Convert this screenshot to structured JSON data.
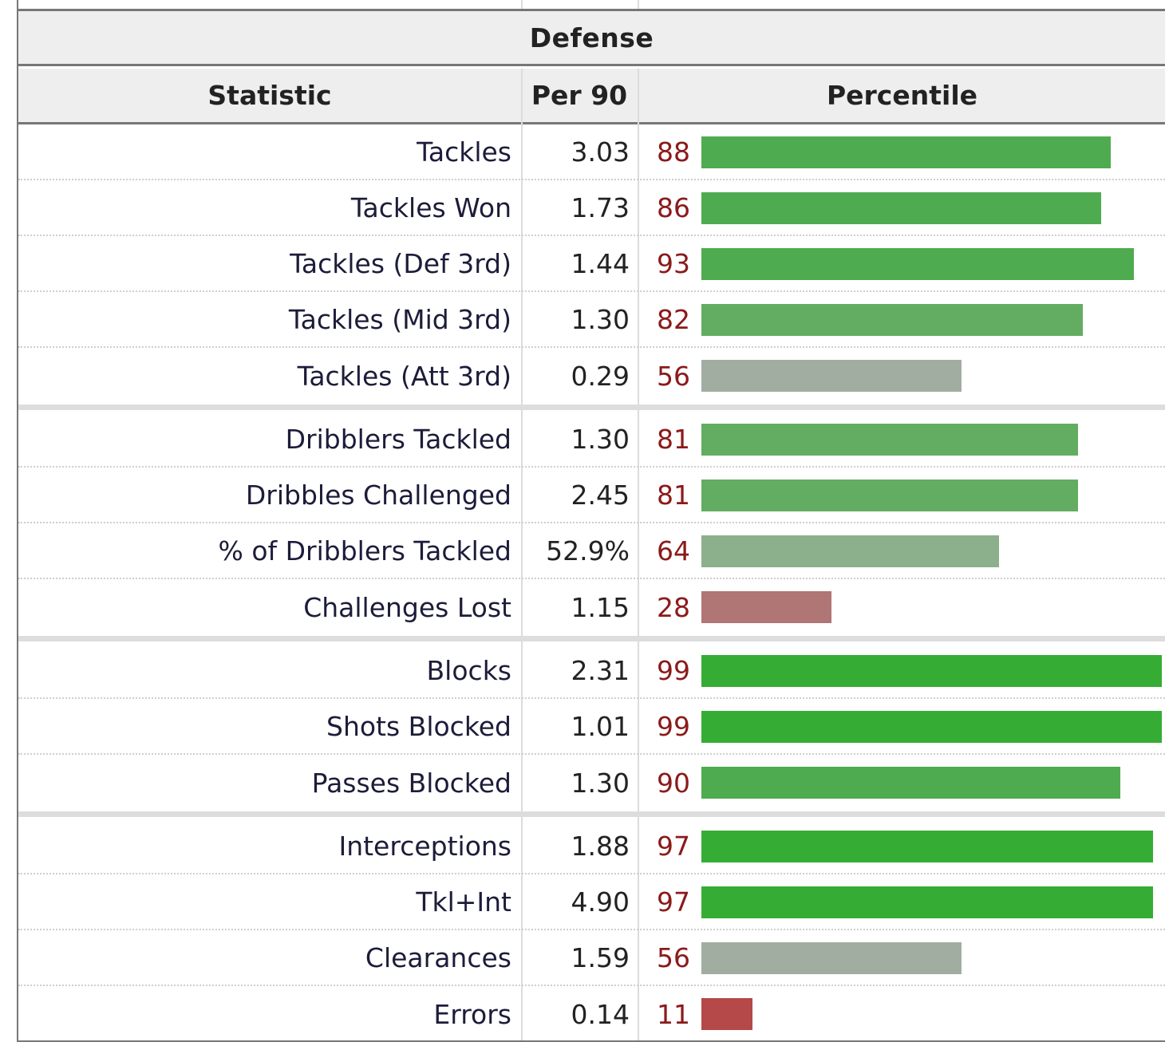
{
  "table": {
    "title": "Defense",
    "columns": [
      "Statistic",
      "Per 90",
      "Percentile"
    ],
    "groups": [
      [
        {
          "stat": "Tackles",
          "per90": "3.03",
          "percentile": 88
        },
        {
          "stat": "Tackles Won",
          "per90": "1.73",
          "percentile": 86
        },
        {
          "stat": "Tackles (Def 3rd)",
          "per90": "1.44",
          "percentile": 93
        },
        {
          "stat": "Tackles (Mid 3rd)",
          "per90": "1.30",
          "percentile": 82
        },
        {
          "stat": "Tackles (Att 3rd)",
          "per90": "0.29",
          "percentile": 56
        }
      ],
      [
        {
          "stat": "Dribblers Tackled",
          "per90": "1.30",
          "percentile": 81
        },
        {
          "stat": "Dribbles Challenged",
          "per90": "2.45",
          "percentile": 81
        },
        {
          "stat": "% of Dribblers Tackled",
          "per90": "52.9%",
          "percentile": 64
        },
        {
          "stat": "Challenges Lost",
          "per90": "1.15",
          "percentile": 28
        }
      ],
      [
        {
          "stat": "Blocks",
          "per90": "2.31",
          "percentile": 99
        },
        {
          "stat": "Shots Blocked",
          "per90": "1.01",
          "percentile": 99
        },
        {
          "stat": "Passes Blocked",
          "per90": "1.30",
          "percentile": 90
        }
      ],
      [
        {
          "stat": "Interceptions",
          "per90": "1.88",
          "percentile": 97
        },
        {
          "stat": "Tkl+Int",
          "per90": "4.90",
          "percentile": 97
        },
        {
          "stat": "Clearances",
          "per90": "1.59",
          "percentile": 56
        },
        {
          "stat": "Errors",
          "per90": "0.14",
          "percentile": 11
        }
      ]
    ]
  },
  "colors": {
    "bar_top": "#35ad35",
    "bar_high": "#4fab4f",
    "bar_mid_high": "#62ad62",
    "bar_mid": "#8bb08b",
    "bar_neutral": "#a2ada2",
    "bar_low": "#b07575",
    "bar_lowest": "#b54848",
    "percentile_text": "#8b1a1a"
  }
}
